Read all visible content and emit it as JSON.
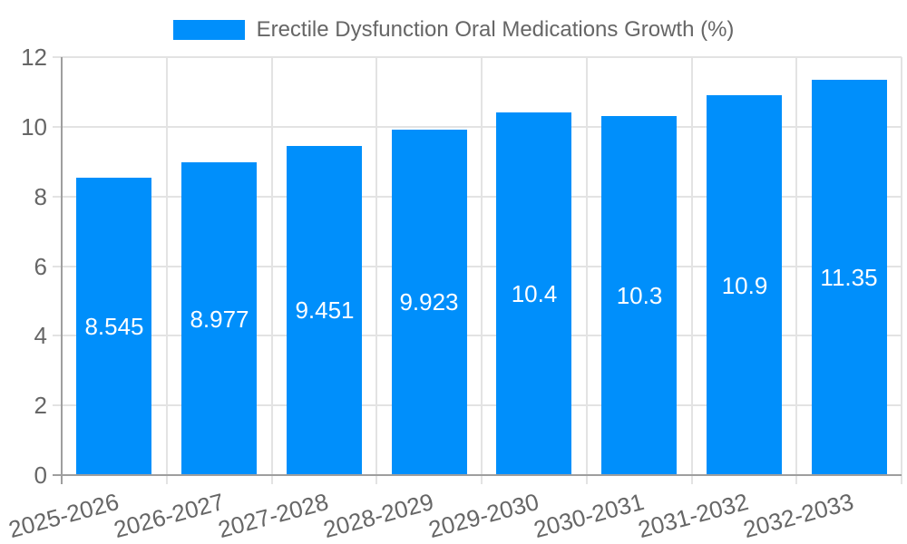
{
  "chart_data": {
    "type": "bar",
    "title": "",
    "legend": {
      "label": "Erectile Dysfunction Oral Medications Growth (%)",
      "position": "top"
    },
    "categories": [
      "2025-2026",
      "2026-2027",
      "2027-2028",
      "2028-2029",
      "2029-2030",
      "2030-2031",
      "2031-2032",
      "2032-2033"
    ],
    "values": [
      8.545,
      8.977,
      9.451,
      9.923,
      10.4,
      10.3,
      10.9,
      11.35
    ],
    "value_labels": [
      "8.545",
      "8.977",
      "9.451",
      "9.923",
      "10.4",
      "10.3",
      "10.9",
      "11.35"
    ],
    "xlabel": "",
    "ylabel": "",
    "ylim": [
      0,
      12
    ],
    "yticks": [
      0,
      2,
      4,
      6,
      8,
      10,
      12
    ],
    "grid": true,
    "x_tick_rotation_deg": -15,
    "legend_position": "top-center",
    "colors": {
      "bar": "#008FFB",
      "grid": "#E3E3E3",
      "axis": "#9E9E9E",
      "tick_text": "#666666",
      "legend_text": "#666666",
      "value_text": "#FFFFFF",
      "background": "#FFFFFF"
    }
  }
}
